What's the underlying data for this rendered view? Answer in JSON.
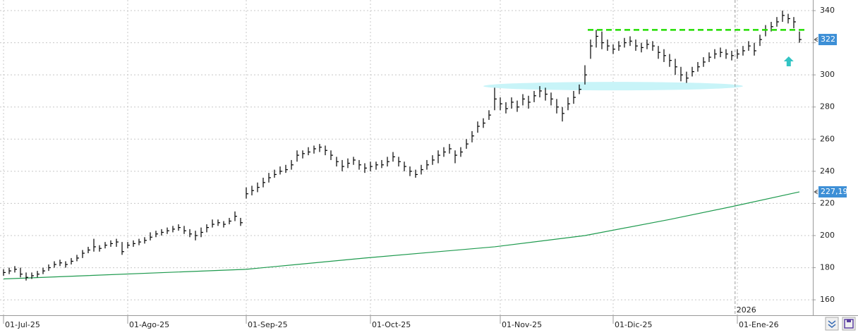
{
  "chart_data": {
    "type": "ohlc",
    "xlim": [
      -0.625,
      143.375
    ],
    "ylim": [
      150.4,
      346.6
    ],
    "yticks": [
      160,
      180,
      200,
      220,
      240,
      260,
      280,
      300,
      320,
      340
    ],
    "xticks": [
      {
        "value": 0,
        "label": "01-Jul-25"
      },
      {
        "value": 22,
        "label": "01-Ago-25"
      },
      {
        "value": 43,
        "label": "01-Sep-25"
      },
      {
        "value": 65,
        "label": "01-Oct-25"
      },
      {
        "value": 88,
        "label": "01-Nov-25"
      },
      {
        "value": 108,
        "label": "01-Dic-25"
      },
      {
        "value": 130,
        "label": "01-Ene-26"
      }
    ],
    "grid": true,
    "bars": {
      "color": "#000000",
      "high": [
        179,
        180,
        181,
        180,
        177,
        177,
        178,
        180,
        182,
        184,
        185,
        184,
        186,
        188,
        191,
        193,
        198,
        194,
        196,
        197,
        198,
        196,
        196,
        197,
        198,
        199,
        202,
        203,
        204,
        205,
        206,
        207,
        206,
        204,
        203,
        205,
        207,
        210,
        210,
        209,
        211,
        215,
        211,
        230,
        231,
        233,
        236,
        239,
        241,
        243,
        244,
        247,
        253,
        253,
        255,
        256,
        257,
        256,
        253,
        249,
        247,
        248,
        249,
        247,
        245,
        246,
        246,
        247,
        249,
        252,
        249,
        246,
        243,
        241,
        244,
        247,
        250,
        253,
        255,
        257,
        253,
        255,
        260,
        265,
        271,
        273,
        278,
        292,
        286,
        283,
        286,
        284,
        288,
        287,
        290,
        293,
        292,
        289,
        285,
        280,
        286,
        290,
        294,
        306,
        322,
        328,
        327,
        322,
        319,
        321,
        323,
        324,
        322,
        320,
        322,
        321,
        318,
        316,
        313,
        310,
        305,
        302,
        305,
        308,
        311,
        314,
        316,
        317,
        316,
        315,
        316,
        318,
        321,
        320,
        325,
        331,
        333,
        336,
        340,
        338,
        336,
        327
      ],
      "low": [
        175,
        176,
        177,
        174,
        172,
        173,
        174,
        176,
        178,
        180,
        181,
        180,
        182,
        184,
        186,
        189,
        190,
        190,
        192,
        193,
        193,
        188,
        192,
        193,
        194,
        195,
        197,
        199,
        200,
        201,
        202,
        203,
        201,
        199,
        197,
        199,
        202,
        205,
        206,
        205,
        207,
        209,
        206,
        223,
        225,
        227,
        230,
        233,
        236,
        238,
        239,
        241,
        246,
        248,
        250,
        251,
        252,
        250,
        247,
        243,
        240,
        242,
        244,
        241,
        239,
        240,
        241,
        242,
        243,
        246,
        243,
        240,
        237,
        236,
        238,
        241,
        244,
        245,
        249,
        251,
        245,
        249,
        254,
        258,
        264,
        267,
        272,
        278,
        278,
        276,
        279,
        277,
        281,
        279,
        283,
        286,
        284,
        281,
        276,
        271,
        278,
        282,
        288,
        294,
        310,
        317,
        316,
        315,
        313,
        315,
        317,
        318,
        315,
        314,
        316,
        315,
        310,
        308,
        305,
        300,
        296,
        295,
        299,
        302,
        305,
        308,
        310,
        311,
        310,
        309,
        310,
        312,
        315,
        312,
        318,
        324,
        327,
        330,
        333,
        332,
        329,
        320
      ],
      "close": [
        177,
        178,
        179,
        176,
        174,
        175,
        176,
        178,
        180,
        182,
        183,
        182,
        184,
        186,
        189,
        191,
        193,
        192,
        194,
        195,
        196,
        190,
        194,
        195,
        196,
        197,
        199,
        201,
        202,
        203,
        204,
        205,
        203,
        201,
        200,
        202,
        205,
        207,
        208,
        207,
        209,
        212,
        208,
        226,
        228,
        230,
        233,
        236,
        238,
        240,
        241,
        244,
        250,
        251,
        252,
        254,
        255,
        253,
        250,
        246,
        243,
        245,
        247,
        244,
        242,
        243,
        244,
        244,
        246,
        249,
        246,
        243,
        240,
        238,
        241,
        244,
        247,
        250,
        252,
        254,
        250,
        252,
        257,
        262,
        268,
        270,
        275,
        285,
        282,
        279,
        283,
        280,
        285,
        283,
        287,
        290,
        288,
        285,
        280,
        276,
        282,
        286,
        291,
        300,
        318,
        324,
        320,
        318,
        316,
        318,
        320,
        321,
        318,
        317,
        319,
        318,
        314,
        312,
        309,
        305,
        300,
        298,
        302,
        305,
        308,
        311,
        313,
        314,
        313,
        312,
        313,
        315,
        318,
        315,
        322,
        328,
        330,
        333,
        337,
        335,
        333,
        322
      ]
    },
    "moving_average": {
      "color": "#1e9a4e",
      "x": [
        0,
        43,
        52,
        64,
        87,
        103,
        118,
        129,
        141
      ],
      "values": [
        173,
        179,
        182,
        186,
        193,
        200,
        210,
        218,
        227.19
      ],
      "last_label": "227,19"
    },
    "resistance": {
      "value": 328,
      "x": [
        103.5,
        141.9
      ],
      "color": "#22dd00"
    },
    "support_zone": {
      "value": 293,
      "x": [
        85,
        131
      ],
      "color": "#c8f4f8"
    },
    "year_marker": {
      "x": 129.6,
      "label": "2026"
    },
    "signal_arrow": {
      "x": 139.1,
      "value": 308,
      "color": "#33c4c4"
    },
    "price_box_color": "#3d8fd6"
  }
}
